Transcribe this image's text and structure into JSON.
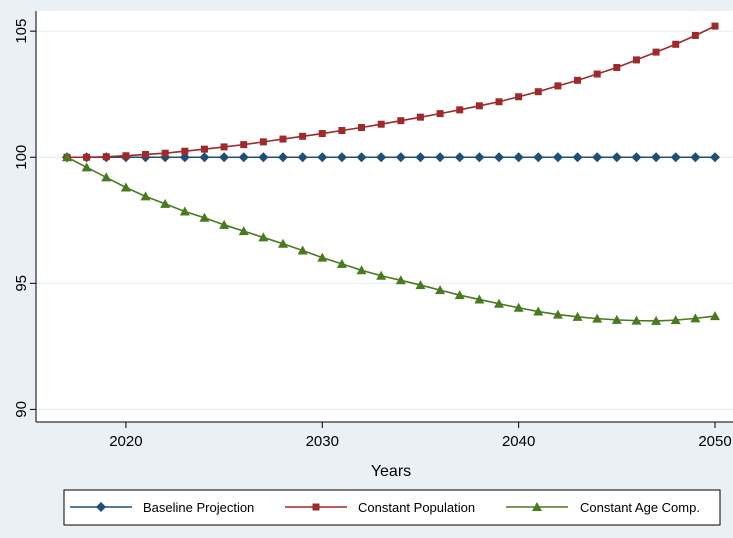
{
  "chart_data": {
    "type": "line",
    "xlabel": "Years",
    "ylabel": "",
    "xlim": [
      2017,
      2050
    ],
    "ylim": [
      89.5,
      105.8
    ],
    "x_ticks": [
      2020,
      2030,
      2040,
      2050
    ],
    "y_ticks": [
      90,
      95,
      100,
      105
    ],
    "grid": "horizontal",
    "legend_position": "bottom",
    "x": [
      2017,
      2018,
      2019,
      2020,
      2021,
      2022,
      2023,
      2024,
      2025,
      2026,
      2027,
      2028,
      2029,
      2030,
      2031,
      2032,
      2033,
      2034,
      2035,
      2036,
      2037,
      2038,
      2039,
      2040,
      2041,
      2042,
      2043,
      2044,
      2045,
      2046,
      2047,
      2048,
      2049,
      2050
    ],
    "series": [
      {
        "name": "Baseline Projection",
        "color": "#1f4e79",
        "marker": "diamond",
        "values": [
          100,
          100,
          100,
          100,
          100,
          100,
          100,
          100,
          100,
          100,
          100,
          100,
          100,
          100,
          100,
          100,
          100,
          100,
          100,
          100,
          100,
          100,
          100,
          100,
          100,
          100,
          100,
          100,
          100,
          100,
          100,
          100,
          100,
          100
        ]
      },
      {
        "name": "Constant Population",
        "color": "#9e2a2b",
        "marker": "square",
        "values": [
          100,
          100,
          100.02,
          100.06,
          100.11,
          100.16,
          100.24,
          100.32,
          100.41,
          100.5,
          100.61,
          100.72,
          100.83,
          100.94,
          101.06,
          101.18,
          101.31,
          101.45,
          101.59,
          101.73,
          101.88,
          102.04,
          102.2,
          102.4,
          102.6,
          102.83,
          103.05,
          103.3,
          103.56,
          103.86,
          104.17,
          104.48,
          104.83,
          105.2
        ]
      },
      {
        "name": "Constant Age Comp.",
        "color": "#4a7a1f",
        "marker": "triangle",
        "values": [
          100,
          99.6,
          99.2,
          98.8,
          98.45,
          98.15,
          97.85,
          97.6,
          97.32,
          97.07,
          96.82,
          96.57,
          96.3,
          96.02,
          95.77,
          95.52,
          95.3,
          95.12,
          94.93,
          94.73,
          94.53,
          94.36,
          94.19,
          94.03,
          93.88,
          93.76,
          93.67,
          93.6,
          93.55,
          93.52,
          93.51,
          93.54,
          93.61,
          93.7
        ]
      }
    ]
  }
}
